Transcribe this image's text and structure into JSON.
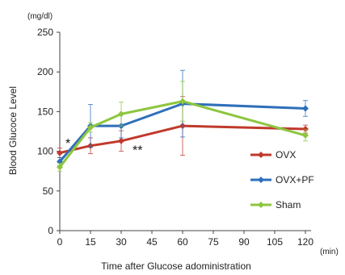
{
  "chart_data": {
    "type": "line",
    "xlabel": "Time after Glucose adoministration",
    "ylabel": "Blood Glucoce Level",
    "y_unit": "(mg/dl)",
    "x_unit": "(min)",
    "x": [
      0,
      15,
      30,
      60,
      120
    ],
    "x_ticks": [
      0,
      15,
      30,
      45,
      60,
      75,
      90,
      105,
      120
    ],
    "x_tick_labels": [
      "0",
      "15",
      "30",
      "45",
      "60",
      "75",
      "90",
      "105",
      "120"
    ],
    "xlim": [
      0,
      120
    ],
    "ylim": [
      0,
      250
    ],
    "y_ticks": [
      0,
      50,
      100,
      150,
      200,
      250
    ],
    "y_tick_labels": [
      "0",
      "50",
      "100",
      "150",
      "200",
      "250"
    ],
    "grid": false,
    "legend_position": "right",
    "series": [
      {
        "name": "OVX",
        "color": "#c0392b",
        "values": [
          98,
          107,
          113,
          132,
          128
        ],
        "error": [
          6,
          10,
          13,
          37,
          5
        ]
      },
      {
        "name": "OVX+PF",
        "color": "#2e6fba",
        "values": [
          87,
          132,
          132,
          160,
          154
        ],
        "error": [
          5,
          27,
          15,
          42,
          10
        ]
      },
      {
        "name": "Sham",
        "color": "#8dc63f",
        "values": [
          80,
          130,
          147,
          163,
          120
        ],
        "error": [
          5,
          6,
          15,
          25,
          7
        ]
      }
    ],
    "annotations": [
      {
        "text": "*",
        "x": 4,
        "y": 111
      },
      {
        "text": "**",
        "x": 38,
        "y": 102
      }
    ]
  }
}
